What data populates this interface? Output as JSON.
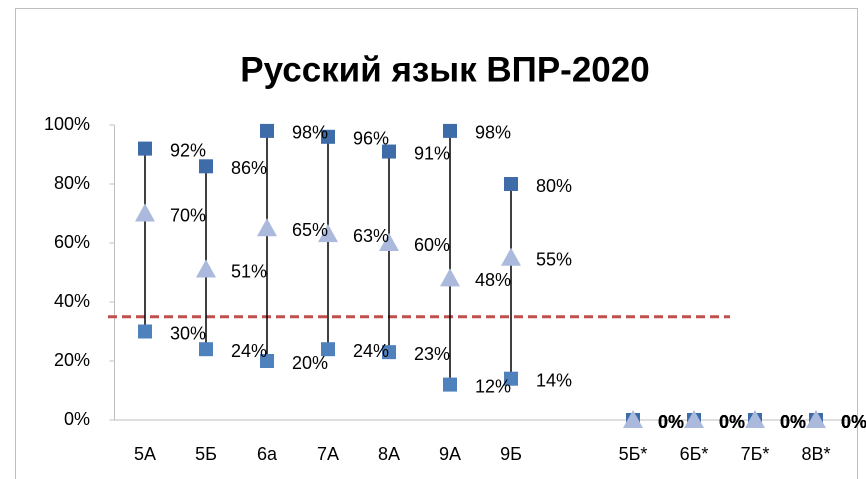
{
  "chart_data": {
    "type": "hilo",
    "title": "Русский язык ВПР-2020",
    "categories": [
      "5А",
      "5Б",
      "6а",
      "7А",
      "8А",
      "9А",
      "9Б",
      null,
      "5Б*",
      "6Б*",
      "7Б*",
      "8В*"
    ],
    "series": [
      {
        "color": "#3d6ca8",
        "marker": "square",
        "values": [
          92,
          86,
          98,
          96,
          91,
          98,
          80,
          null,
          0,
          0,
          0,
          0
        ],
        "value_labels": [
          "92%",
          "86%",
          "98%",
          "96%",
          "91%",
          "98%",
          "80%",
          null,
          "0%",
          "0%",
          "0%",
          "0%"
        ]
      },
      {
        "color": "#4f81bd",
        "marker": "square",
        "values": [
          30,
          24,
          20,
          24,
          23,
          12,
          14,
          null,
          0,
          0,
          0,
          0
        ],
        "value_labels": [
          "30%",
          "24%",
          "20%",
          "24%",
          "23%",
          "12%",
          "14%",
          null,
          "0%",
          "0%",
          "0%",
          "0%"
        ]
      },
      {
        "color": "#abbadc",
        "marker": "triangle",
        "values": [
          70,
          51,
          65,
          63,
          60,
          48,
          55,
          null,
          0,
          0,
          0,
          0
        ],
        "value_labels": [
          "70%",
          "51%",
          "65%",
          "63%",
          "60%",
          "48%",
          "55%",
          null,
          "0%",
          "0%",
          "0%",
          "0%"
        ]
      }
    ],
    "ylim": [
      0,
      100
    ],
    "yticks": [
      {
        "value": 0,
        "label": "0%"
      },
      {
        "value": 20,
        "label": "20%"
      },
      {
        "value": 40,
        "label": "40%"
      },
      {
        "value": 60,
        "label": "60%"
      },
      {
        "value": 80,
        "label": "80%"
      },
      {
        "value": 100,
        "label": "100%"
      }
    ],
    "reference_line": {
      "value": 35,
      "color": "#c0504d"
    }
  }
}
